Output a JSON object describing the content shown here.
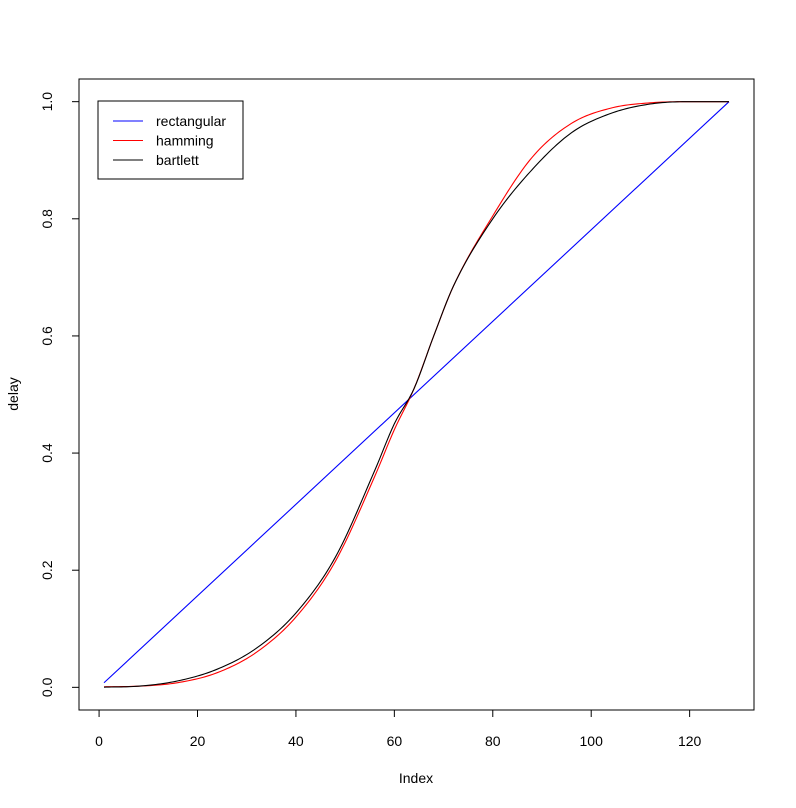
{
  "chart_data": {
    "type": "line",
    "title": "",
    "xlabel": "Index",
    "ylabel": "delay",
    "xlim": [
      -4.08,
      133.08
    ],
    "ylim": [
      -0.0387,
      1.0387
    ],
    "xticks": [
      0,
      20,
      40,
      60,
      80,
      100,
      120
    ],
    "yticks": [
      0.0,
      0.2,
      0.4,
      0.6,
      0.8,
      1.0
    ],
    "xtick_labels": [
      "0",
      "20",
      "40",
      "60",
      "80",
      "100",
      "120"
    ],
    "ytick_labels": [
      "0.0",
      "0.2",
      "0.4",
      "0.6",
      "0.8",
      "1.0"
    ],
    "grid": false,
    "legend_position": "top-left",
    "series": [
      {
        "name": "rectangular",
        "color": "#0000ff",
        "x": [
          1,
          128
        ],
        "y": [
          0.0078,
          1.0
        ]
      },
      {
        "name": "hamming",
        "color": "#ff0000",
        "x": [
          1,
          8,
          16,
          24,
          32,
          40,
          48,
          56,
          60,
          64,
          68,
          72,
          80,
          88,
          96,
          104,
          112,
          120,
          128
        ],
        "y": [
          0.001,
          0.002,
          0.008,
          0.025,
          0.06,
          0.12,
          0.215,
          0.36,
          0.44,
          0.51,
          0.6,
          0.685,
          0.805,
          0.905,
          0.963,
          0.989,
          0.998,
          1.0,
          1.0
        ]
      },
      {
        "name": "bartlett",
        "color": "#000000",
        "x": [
          1,
          8,
          16,
          24,
          32,
          40,
          48,
          56,
          60,
          64,
          68,
          72,
          80,
          88,
          96,
          104,
          112,
          120,
          128
        ],
        "y": [
          0.0003,
          0.002,
          0.011,
          0.031,
          0.067,
          0.127,
          0.222,
          0.37,
          0.45,
          0.51,
          0.6,
          0.685,
          0.8,
          0.884,
          0.947,
          0.98,
          0.996,
          1.0,
          1.0
        ]
      }
    ]
  }
}
